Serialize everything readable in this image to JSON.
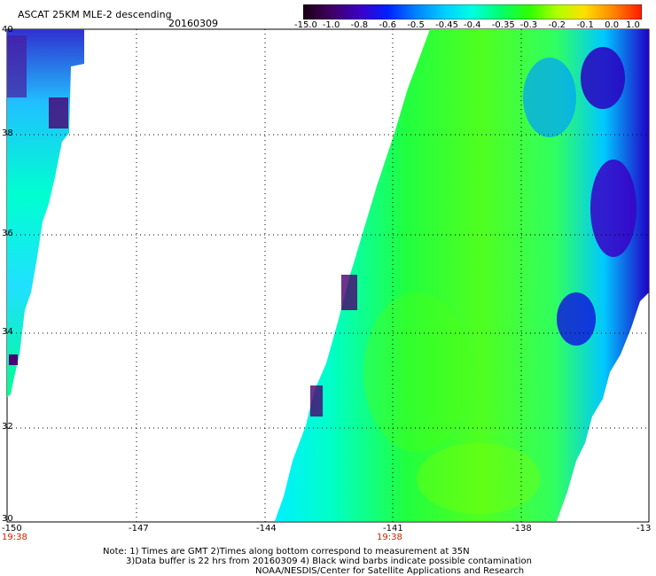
{
  "header": {
    "title": "ASCAT 25KM MLE-2 descending",
    "date": "20160309"
  },
  "colorbar": {
    "labels": [
      "-15.0",
      "-1.0",
      "-0.8",
      "-0.6",
      "-0.5",
      "-0.45",
      "-0.4",
      "-0.35",
      "-0.3",
      "-0.2",
      "-0.1",
      "0.0",
      "1.0"
    ],
    "colors": [
      "#1a0010",
      "#4a0070",
      "#3a00c8",
      "#0030ff",
      "#0090ff",
      "#00d8ff",
      "#00ffd8",
      "#00ff60",
      "#40ff00",
      "#c0ff00",
      "#ffe000",
      "#ff8000",
      "#ff2000"
    ]
  },
  "axes": {
    "x_ticks": [
      "-150",
      "-147",
      "-144",
      "-141",
      "-138",
      "-13"
    ],
    "y_ticks": [
      "40",
      "38",
      "36",
      "34",
      "32",
      "30"
    ]
  },
  "pass_times": [
    "19:38",
    "19:38"
  ],
  "notes": [
    "Note: 1) Times are GMT 2)Times along bottom correspond to measurement at 35N",
    "3)Data buffer is 22 hrs from 20160309 4) Black wind barbs indicate possible contamination",
    "NOAA/NESDIS/Center for Satellite Applications and Research"
  ]
}
